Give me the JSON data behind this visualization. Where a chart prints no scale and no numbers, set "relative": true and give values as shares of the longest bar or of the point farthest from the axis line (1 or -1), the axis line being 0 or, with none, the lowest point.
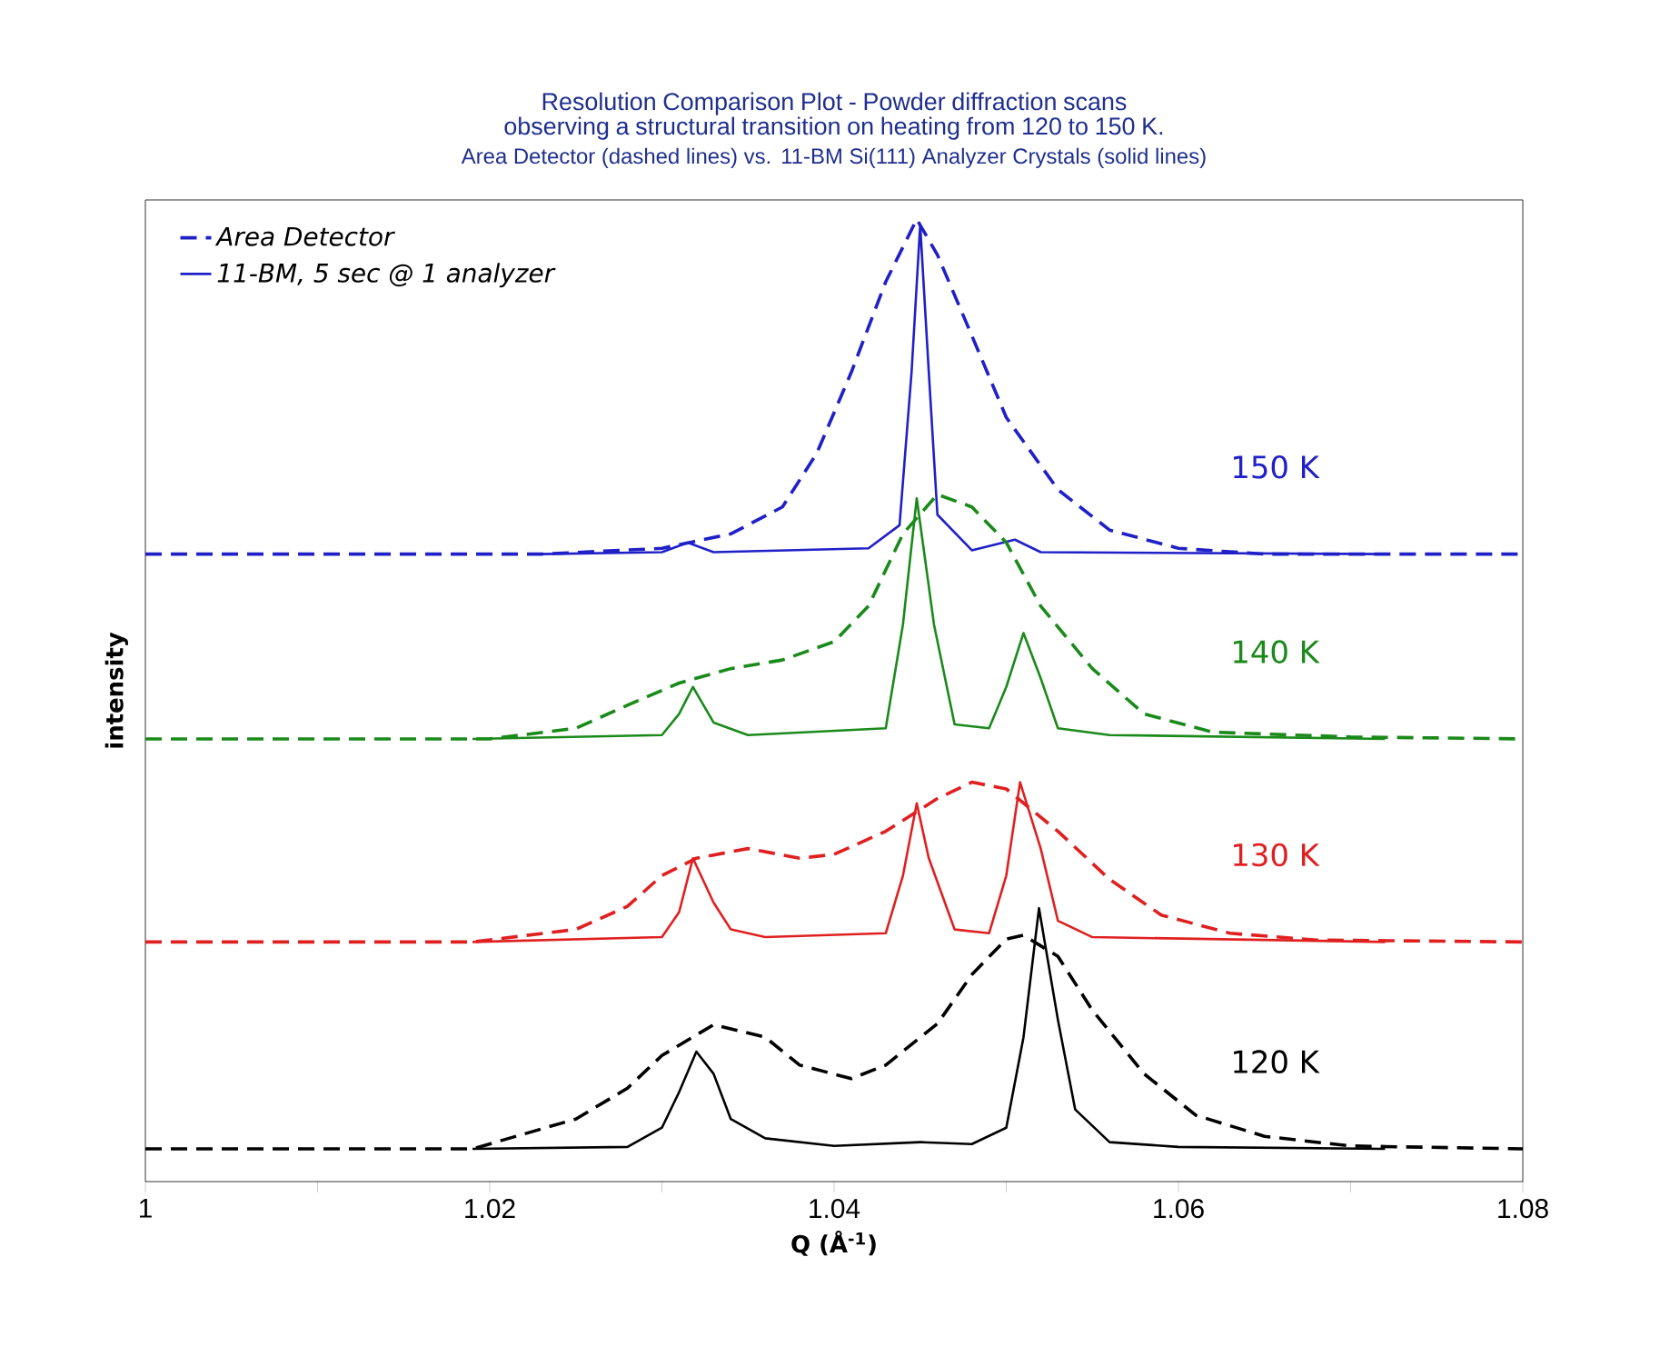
{
  "chart_data": {
    "type": "line",
    "title": "Resolution Comparison Plot - Powder diffraction scans observing a structural transition on heating from 120 to 150 K.",
    "subtitle": "Area Detector (dashed lines) vs. 11-BM Si(111) Analyzer Crystals (solid lines)",
    "xlabel": "Q (Å$^{-1}$)",
    "ylabel": "intensity",
    "relative": true,
    "xlim": [
      1,
      1.08
    ],
    "xticks": [
      1,
      {
        "value": 1.01,
        "label": null
      },
      1.02,
      {
        "value": 1.03,
        "label": null
      },
      1.04,
      {
        "value": 1.05,
        "label": null
      },
      1.06,
      {
        "value": 1.07,
        "label": null
      },
      1.08
    ],
    "grid": false,
    "legend": "top left",
    "series": [
      {
        "name": "Area Detector",
        "color": "#2020c8",
        "line_style": "dashed",
        "x": [
          1,
          1.023,
          1.03,
          1.034,
          1.037,
          1.039,
          1.041,
          1.043,
          1.0448,
          1.046,
          1.048,
          1.05,
          1.053,
          1.056,
          1.06,
          1.065,
          1.08
        ],
        "values": [
          0.652,
          0.652,
          0.658,
          0.673,
          0.701,
          0.757,
          0.841,
          0.935,
          1.0,
          0.963,
          0.879,
          0.794,
          0.719,
          0.677,
          0.658,
          0.652,
          0.652
        ]
      },
      {
        "name": "11-BM, 5 sec @ 1 analyzer",
        "color": "#2020c8",
        "line_style": "solid",
        "x": [
          1.023,
          1.03,
          1.0315,
          1.033,
          1.042,
          1.0438,
          1.0445,
          1.045,
          1.0455,
          1.046,
          1.048,
          1.0505,
          1.052,
          1.072
        ],
        "values": [
          0.652,
          0.654,
          0.664,
          0.654,
          0.658,
          0.682,
          0.841,
          0.994,
          0.841,
          0.693,
          0.656,
          0.667,
          0.654,
          0.652
        ]
      },
      {
        "color": "#1a8a1a",
        "line_style": "dashed",
        "x": [
          1,
          1.02,
          1.025,
          1.028,
          1.031,
          1.034,
          1.037,
          1.04,
          1.042,
          1.044,
          1.046,
          1.048,
          1.05,
          1.052,
          1.055,
          1.058,
          1.062,
          1.07,
          1.08
        ],
        "values": [
          0.46,
          0.46,
          0.471,
          0.495,
          0.518,
          0.533,
          0.542,
          0.561,
          0.598,
          0.673,
          0.714,
          0.701,
          0.664,
          0.598,
          0.533,
          0.486,
          0.467,
          0.462,
          0.46
        ]
      },
      {
        "color": "#1a8a1a",
        "line_style": "solid",
        "x": [
          1.019,
          1.03,
          1.031,
          1.0318,
          1.033,
          1.035,
          1.043,
          1.044,
          1.0448,
          1.0458,
          1.047,
          1.049,
          1.05,
          1.051,
          1.052,
          1.053,
          1.056,
          1.072
        ],
        "values": [
          0.46,
          0.464,
          0.486,
          0.514,
          0.477,
          0.464,
          0.471,
          0.579,
          0.71,
          0.579,
          0.475,
          0.471,
          0.514,
          0.57,
          0.523,
          0.471,
          0.464,
          0.46
        ]
      },
      {
        "color": "#e02020",
        "line_style": "dashed",
        "x": [
          1,
          1.019,
          1.025,
          1.028,
          1.03,
          1.032,
          1.035,
          1.038,
          1.04,
          1.043,
          1.046,
          1.048,
          1.05,
          1.053,
          1.056,
          1.059,
          1.063,
          1.068,
          1.08
        ],
        "values": [
          0.249,
          0.249,
          0.262,
          0.286,
          0.318,
          0.336,
          0.346,
          0.336,
          0.34,
          0.364,
          0.398,
          0.415,
          0.408,
          0.364,
          0.314,
          0.277,
          0.258,
          0.251,
          0.249
        ]
      },
      {
        "color": "#e02020",
        "line_style": "solid",
        "x": [
          1.019,
          1.03,
          1.031,
          1.0318,
          1.033,
          1.034,
          1.036,
          1.043,
          1.044,
          1.0448,
          1.0455,
          1.047,
          1.049,
          1.05,
          1.0508,
          1.052,
          1.053,
          1.055,
          1.072
        ],
        "values": [
          0.249,
          0.254,
          0.28,
          0.336,
          0.29,
          0.262,
          0.254,
          0.258,
          0.318,
          0.393,
          0.336,
          0.262,
          0.258,
          0.318,
          0.415,
          0.346,
          0.271,
          0.254,
          0.249
        ]
      },
      {
        "color": "#000000",
        "line_style": "dashed",
        "x": [
          1,
          1.019,
          1.025,
          1.028,
          1.03,
          1.033,
          1.036,
          1.038,
          1.041,
          1.043,
          1.046,
          1.048,
          1.05,
          1.051,
          1.053,
          1.055,
          1.058,
          1.061,
          1.065,
          1.07,
          1.08
        ],
        "values": [
          0.034,
          0.034,
          0.065,
          0.097,
          0.131,
          0.163,
          0.15,
          0.121,
          0.107,
          0.121,
          0.164,
          0.215,
          0.252,
          0.256,
          0.234,
          0.178,
          0.112,
          0.069,
          0.047,
          0.037,
          0.034
        ]
      },
      {
        "color": "#000000",
        "line_style": "solid",
        "x": [
          1.019,
          1.028,
          1.03,
          1.031,
          1.032,
          1.033,
          1.034,
          1.036,
          1.04,
          1.045,
          1.048,
          1.05,
          1.051,
          1.0519,
          1.053,
          1.054,
          1.056,
          1.06,
          1.072
        ],
        "values": [
          0.034,
          0.036,
          0.056,
          0.093,
          0.135,
          0.112,
          0.065,
          0.045,
          0.037,
          0.041,
          0.039,
          0.056,
          0.15,
          0.284,
          0.168,
          0.075,
          0.041,
          0.036,
          0.034
        ]
      }
    ],
    "annotations": [
      "150 K",
      "140 K",
      "130 K",
      "120 K"
    ]
  }
}
